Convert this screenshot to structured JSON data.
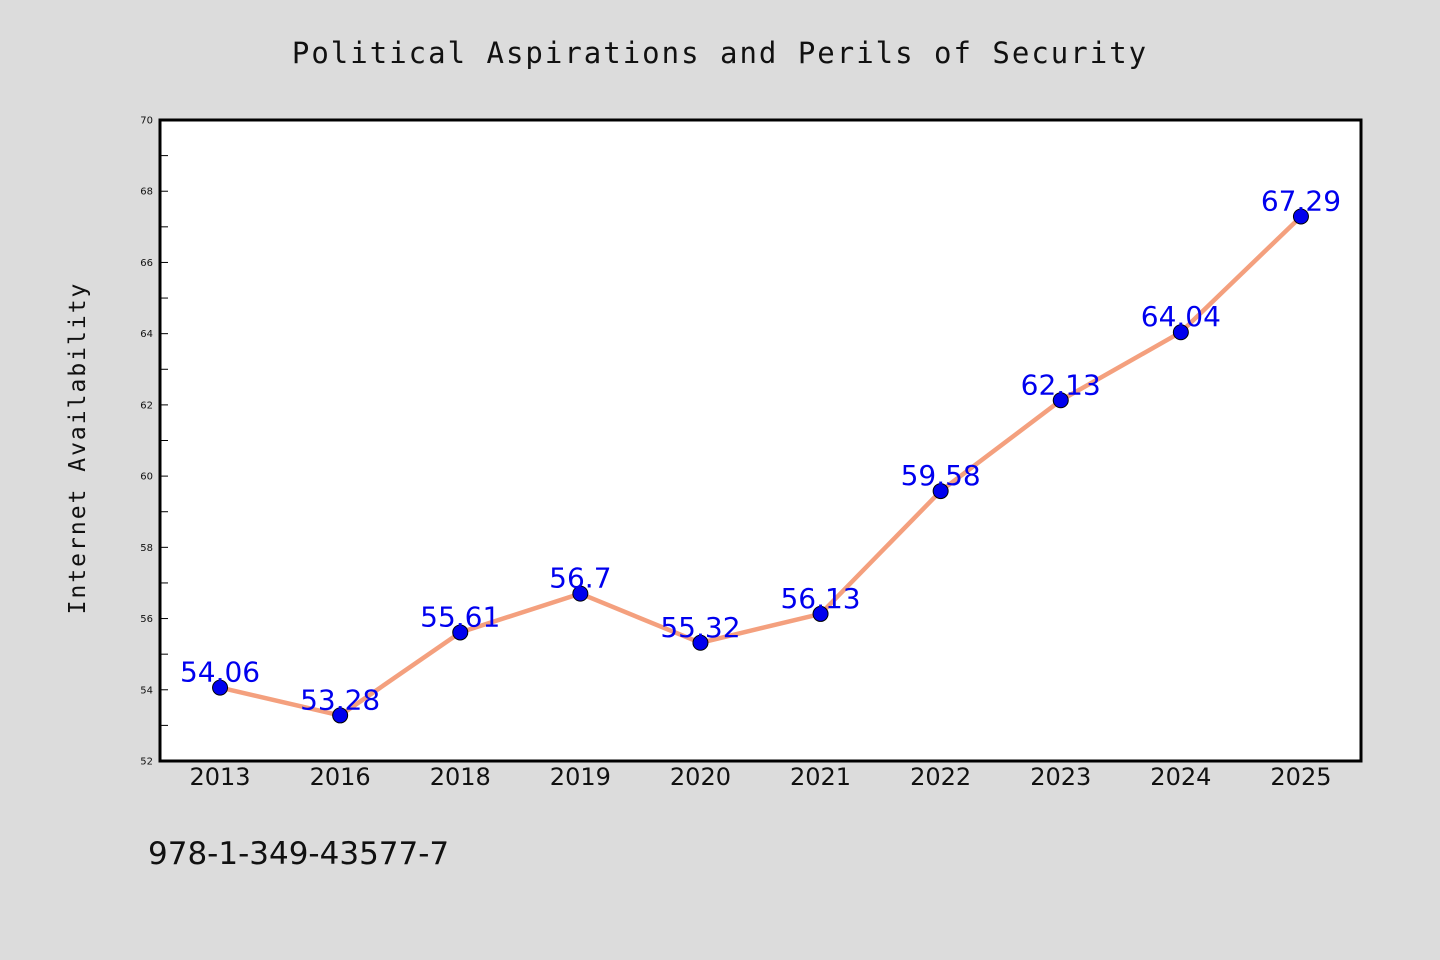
{
  "chart_data": {
    "type": "line",
    "title": "Political Aspirations and Perils of Security",
    "xlabel": "",
    "ylabel": "Internet Availability",
    "categories": [
      "2013",
      "2016",
      "2018",
      "2019",
      "2020",
      "2021",
      "2022",
      "2023",
      "2024",
      "2025"
    ],
    "series": [
      {
        "values": [
          54.06,
          53.28,
          55.61,
          56.7,
          55.32,
          56.13,
          59.58,
          62.13,
          64.04,
          67.29
        ]
      }
    ],
    "data_labels": [
      "54.06",
      "53.28",
      "55.61",
      "56.7",
      "55.32",
      "56.13",
      "59.58",
      "62.13",
      "64.04",
      "67.29"
    ],
    "ylim": [
      52,
      70
    ],
    "yticks": [
      "52",
      "54",
      "56",
      "58",
      "60",
      "62",
      "64",
      "66",
      "68",
      "70"
    ],
    "grid": false,
    "legend": "none",
    "colors": {
      "line": "#f4a07e",
      "marker": "#0000ee",
      "label": "#0000ee",
      "background": "#dcdcdc",
      "plot_background": "#ffffff"
    }
  },
  "footer_text": "978-1-349-43577-7"
}
